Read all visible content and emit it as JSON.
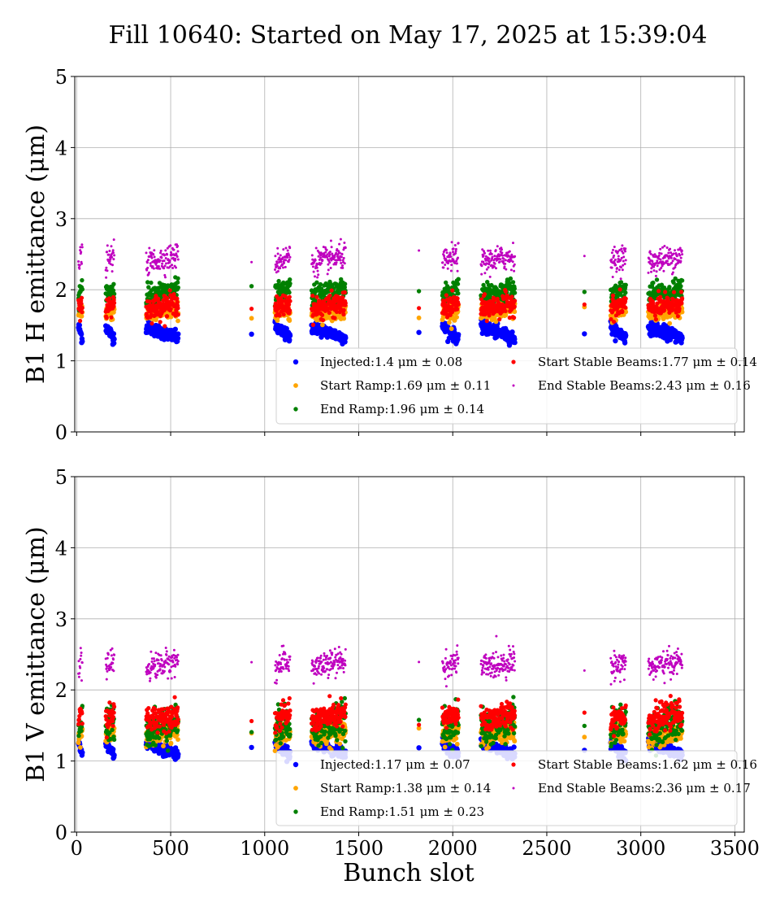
{
  "figure": {
    "title": "Fill 10640: Started on May 17, 2025 at 15:39:04",
    "xlabel": "Bunch slot"
  },
  "colors": {
    "injected": "#0000ff",
    "start_ramp": "#ffa500",
    "end_ramp": "#008000",
    "start_stable": "#ff0000",
    "end_stable": "#bf00bf",
    "grid": "#b0b0b0"
  },
  "chart_data": [
    {
      "type": "scatter",
      "id": "h",
      "ylabel": "B1 H emittance (μm)",
      "xlim": [
        -10,
        3550
      ],
      "ylim": [
        0,
        5
      ],
      "xticks": [
        0,
        500,
        1000,
        1500,
        2000,
        2500,
        3000,
        3500
      ],
      "yticks": [
        0,
        1,
        2,
        3,
        4,
        5
      ],
      "show_xtick_labels": false,
      "grid": true,
      "legend_position": "lower right",
      "trains": [
        {
          "x0": 10,
          "x1": 30
        },
        {
          "x0": 155,
          "x1": 200
        },
        {
          "x0": 370,
          "x1": 540
        },
        {
          "x0": 930,
          "x1": 930
        },
        {
          "x0": 1055,
          "x1": 1135
        },
        {
          "x0": 1250,
          "x1": 1430
        },
        {
          "x0": 1820,
          "x1": 1820
        },
        {
          "x0": 1945,
          "x1": 2030
        },
        {
          "x0": 2150,
          "x1": 2330
        },
        {
          "x0": 2700,
          "x1": 2700
        },
        {
          "x0": 2840,
          "x1": 2920
        },
        {
          "x0": 3040,
          "x1": 3220
        }
      ],
      "series": [
        {
          "key": "injected",
          "legend_name": "Injected:",
          "legend_value": "1.4 μm ± 0.08",
          "mean": 1.4,
          "std": 0.08
        },
        {
          "key": "start_ramp",
          "legend_name": "Start Ramp:",
          "legend_value": "1.69 μm ± 0.11",
          "mean": 1.69,
          "std": 0.11
        },
        {
          "key": "end_ramp",
          "legend_name": "End Ramp:",
          "legend_value": "1.96 μm ± 0.14",
          "mean": 1.96,
          "std": 0.14
        },
        {
          "key": "start_stable",
          "legend_name": "Start Stable Beams:",
          "legend_value": "1.77 μm ± 0.14",
          "mean": 1.77,
          "std": 0.14
        },
        {
          "key": "end_stable",
          "legend_name": "End Stable Beams:",
          "legend_value": "2.43 μm ± 0.16",
          "mean": 2.43,
          "std": 0.16
        }
      ]
    },
    {
      "type": "scatter",
      "id": "v",
      "ylabel": "B1 V emittance (μm)",
      "xlim": [
        -10,
        3550
      ],
      "ylim": [
        0,
        5
      ],
      "xticks": [
        0,
        500,
        1000,
        1500,
        2000,
        2500,
        3000,
        3500
      ],
      "yticks": [
        0,
        1,
        2,
        3,
        4,
        5
      ],
      "show_xtick_labels": true,
      "grid": true,
      "legend_position": "lower right",
      "trains": [
        {
          "x0": 10,
          "x1": 30
        },
        {
          "x0": 155,
          "x1": 200
        },
        {
          "x0": 370,
          "x1": 540
        },
        {
          "x0": 930,
          "x1": 930
        },
        {
          "x0": 1055,
          "x1": 1135
        },
        {
          "x0": 1250,
          "x1": 1430
        },
        {
          "x0": 1820,
          "x1": 1820
        },
        {
          "x0": 1945,
          "x1": 2030
        },
        {
          "x0": 2150,
          "x1": 2330
        },
        {
          "x0": 2700,
          "x1": 2700
        },
        {
          "x0": 2840,
          "x1": 2920
        },
        {
          "x0": 3040,
          "x1": 3220
        }
      ],
      "series": [
        {
          "key": "injected",
          "legend_name": "Injected:",
          "legend_value": "1.17 μm ± 0.07",
          "mean": 1.17,
          "std": 0.07
        },
        {
          "key": "start_ramp",
          "legend_name": "Start Ramp:",
          "legend_value": "1.38 μm ± 0.14",
          "mean": 1.38,
          "std": 0.14
        },
        {
          "key": "end_ramp",
          "legend_name": "End Ramp:",
          "legend_value": "1.51 μm ± 0.23",
          "mean": 1.51,
          "std": 0.23
        },
        {
          "key": "start_stable",
          "legend_name": "Start Stable Beams:",
          "legend_value": "1.62 μm ± 0.16",
          "mean": 1.62,
          "std": 0.16
        },
        {
          "key": "end_stable",
          "legend_name": "End Stable Beams:",
          "legend_value": "2.36 μm ± 0.17",
          "mean": 2.36,
          "std": 0.17
        }
      ]
    }
  ]
}
